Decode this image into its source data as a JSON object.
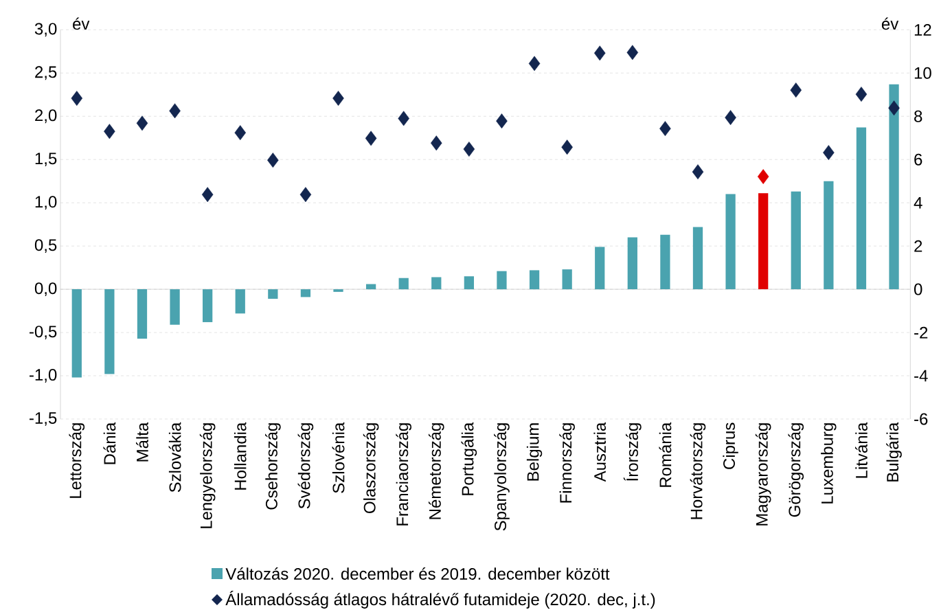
{
  "chart_data": {
    "type": "bar",
    "ylabel": "év",
    "y2label": "év",
    "categories": [
      "Lettország",
      "Dánia",
      "Málta",
      "Szlovákia",
      "Lengyelország",
      "Hollandia",
      "Csehország",
      "Svédország",
      "Szlovénia",
      "Olaszország",
      "Franciaország",
      "Németország",
      "Portugália",
      "Spanyolország",
      "Belgium",
      "Finnország",
      "Ausztria",
      "Írország",
      "Románia",
      "Horvátország",
      "Ciprus",
      "Magyarország",
      "Görögország",
      "Luxemburg",
      "Litvánia",
      "Bulgária"
    ],
    "series": [
      {
        "name": "Változás 2020. december és 2019. december között",
        "color": "#4aa3af",
        "colors": [
          "#4aa3af",
          "#4aa3af",
          "#4aa3af",
          "#4aa3af",
          "#4aa3af",
          "#4aa3af",
          "#4aa3af",
          "#4aa3af",
          "#4aa3af",
          "#4aa3af",
          "#4aa3af",
          "#4aa3af",
          "#4aa3af",
          "#4aa3af",
          "#4aa3af",
          "#4aa3af",
          "#4aa3af",
          "#4aa3af",
          "#4aa3af",
          "#4aa3af",
          "#4aa3af",
          "#e00000",
          "#4aa3af",
          "#4aa3af",
          "#4aa3af",
          "#4aa3af"
        ],
        "values": [
          -1.02,
          -0.98,
          -0.57,
          -0.41,
          -0.38,
          -0.28,
          -0.11,
          -0.09,
          -0.03,
          0.06,
          0.13,
          0.14,
          0.15,
          0.21,
          0.22,
          0.23,
          0.49,
          0.6,
          0.63,
          0.72,
          1.1,
          1.11,
          1.13,
          1.25,
          1.87,
          2.37
        ]
      },
      {
        "name": "Államadósság átlagos hátralévő futamideje (2020. dec, j.t.)",
        "type": "scatter",
        "axis": "y2",
        "marker": "diamond",
        "color": "#13264f",
        "colors": [
          "#13264f",
          "#13264f",
          "#13264f",
          "#13264f",
          "#13264f",
          "#13264f",
          "#13264f",
          "#13264f",
          "#13264f",
          "#13264f",
          "#13264f",
          "#13264f",
          "#13264f",
          "#13264f",
          "#13264f",
          "#13264f",
          "#13264f",
          "#13264f",
          "#13264f",
          "#13264f",
          "#13264f",
          "#e00000",
          "#13264f",
          "#13264f",
          "#13264f",
          "#13264f"
        ],
        "values": [
          8.83,
          7.3,
          7.68,
          8.25,
          4.38,
          7.24,
          5.97,
          4.38,
          8.83,
          6.98,
          7.9,
          6.76,
          6.48,
          7.78,
          10.44,
          6.57,
          10.92,
          10.95,
          7.43,
          5.43,
          7.94,
          5.21,
          9.21,
          6.32,
          9.02,
          8.38
        ]
      }
    ],
    "ylim": [
      -1.5,
      3.0
    ],
    "yticks": [
      {
        "value": -1.5,
        "label": "-1,5"
      },
      {
        "value": -1.0,
        "label": "-1,0"
      },
      {
        "value": -0.5,
        "label": "-0,5"
      },
      {
        "value": 0,
        "label": "0,0"
      },
      {
        "value": 0.5,
        "label": "0,5"
      },
      {
        "value": 1.0,
        "label": "1,0"
      },
      {
        "value": 1.5,
        "label": "1,5"
      },
      {
        "value": 2.0,
        "label": "2,0"
      },
      {
        "value": 2.5,
        "label": "2,5"
      },
      {
        "value": 3.0,
        "label": "3,0"
      }
    ],
    "y2lim": [
      -6,
      12
    ],
    "y2ticks": [
      -6,
      -4,
      -2,
      0,
      2,
      4,
      6,
      8,
      10,
      12
    ],
    "grid": "y",
    "legend": "bottom"
  }
}
